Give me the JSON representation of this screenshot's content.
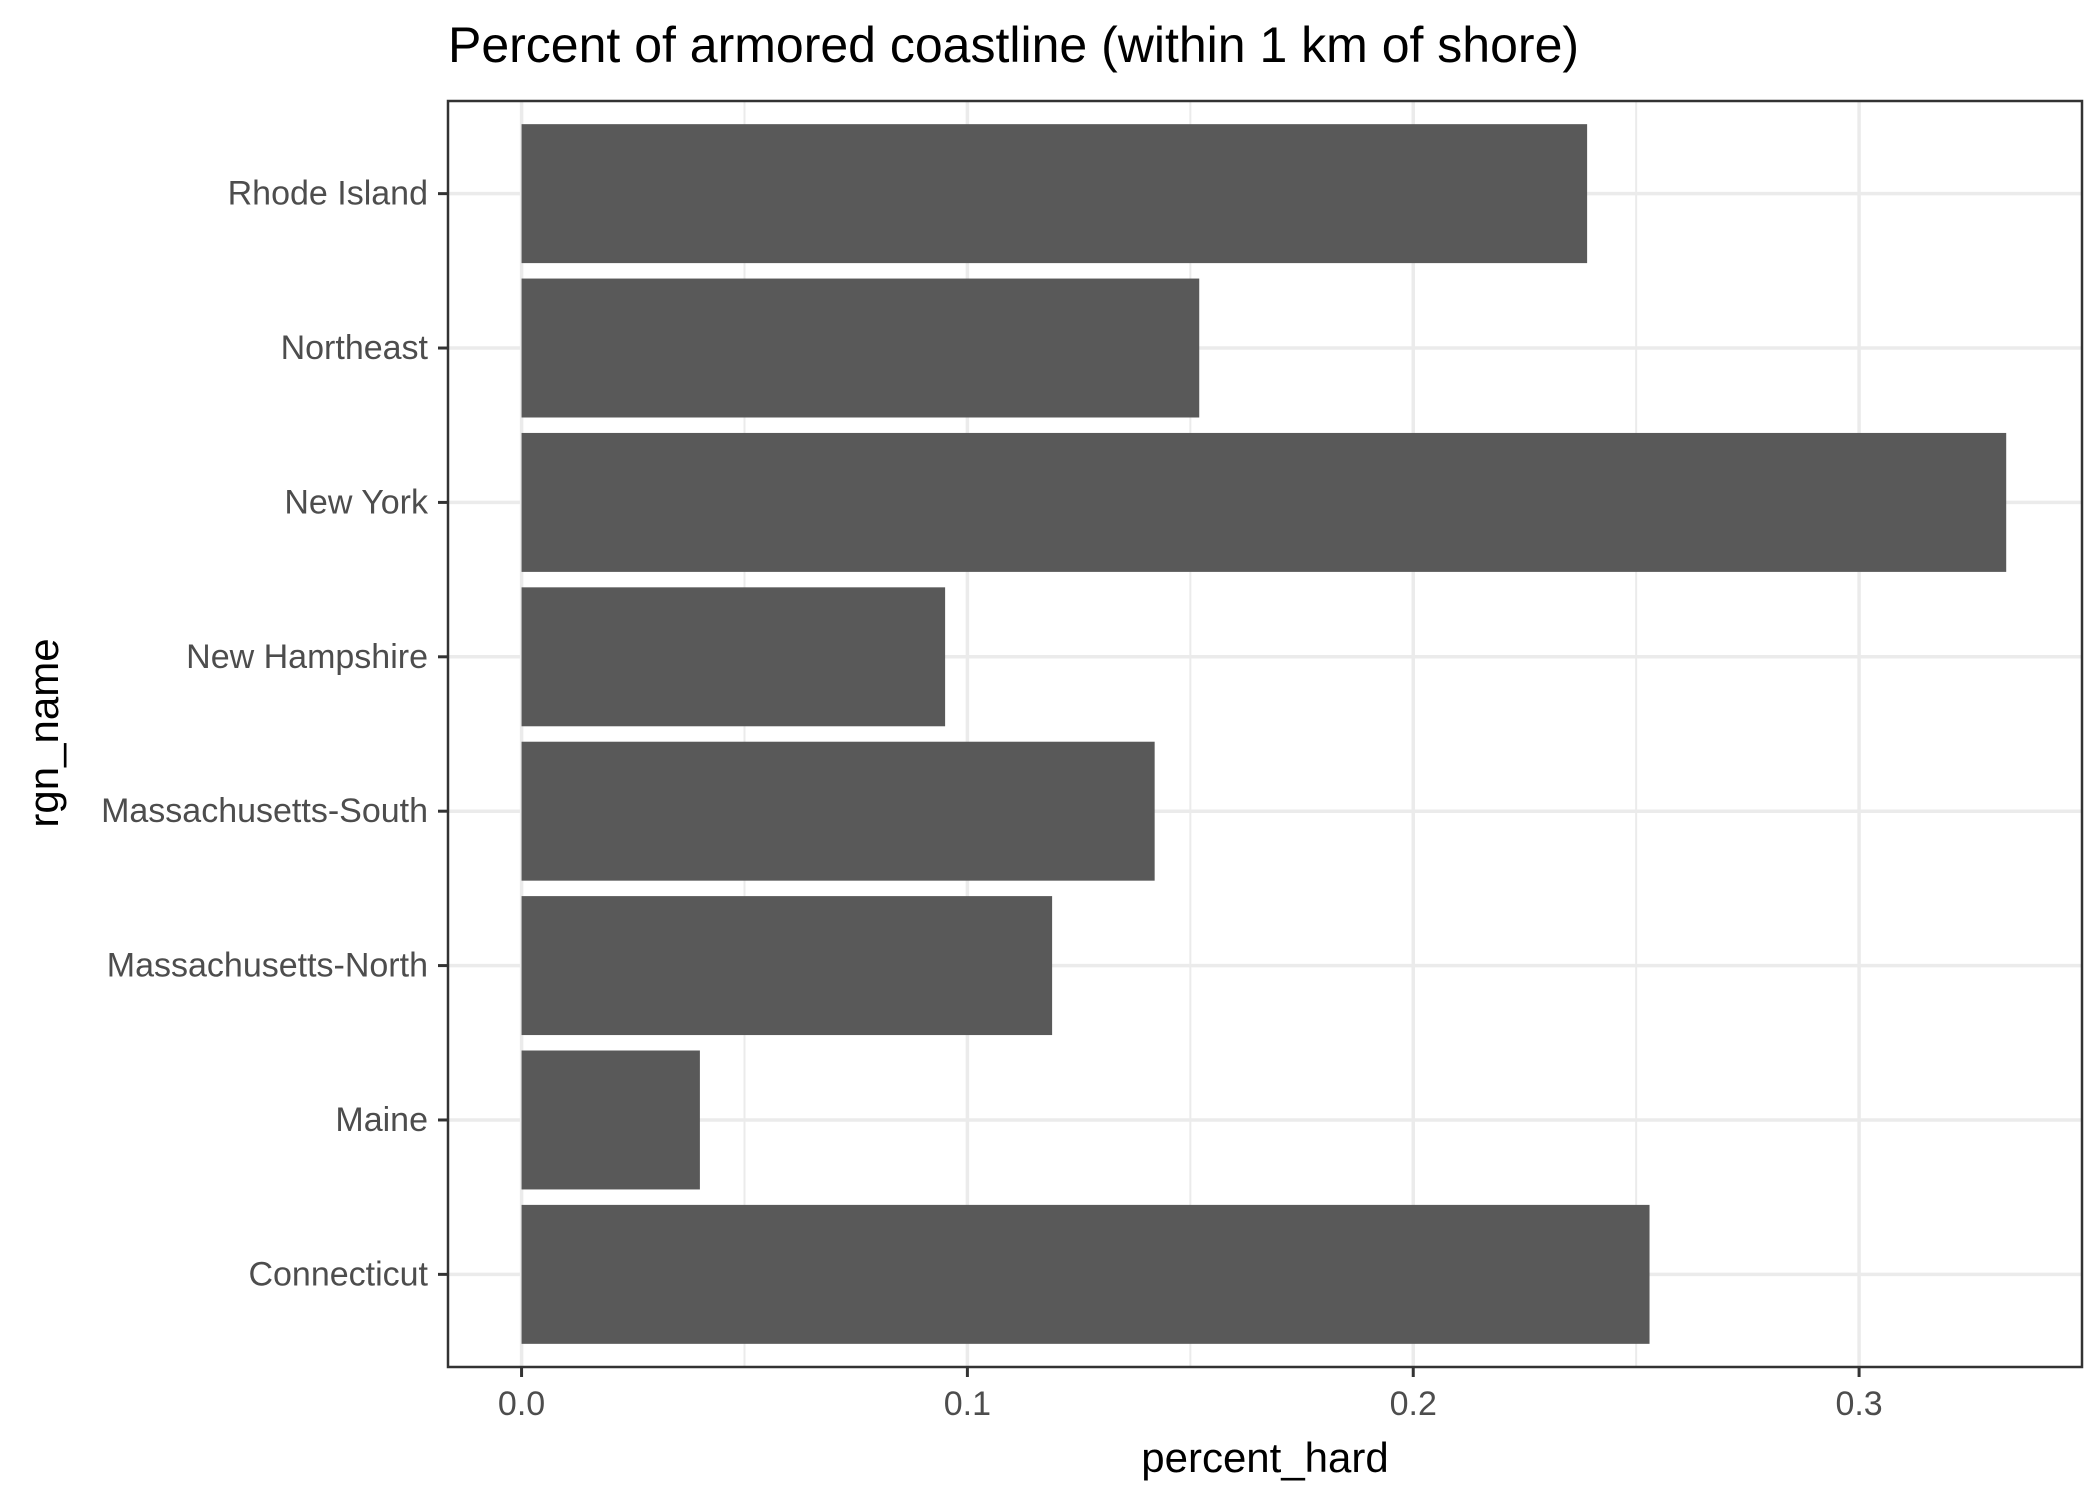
{
  "chart_data": {
    "type": "bar",
    "orientation": "horizontal",
    "title": "Percent of armored coastline (within 1 km of shore)",
    "xlabel": "percent_hard",
    "ylabel": "rgn_name",
    "categories": [
      "Connecticut",
      "Maine",
      "Massachusetts-North",
      "Massachusetts-South",
      "New Hampshire",
      "New York",
      "Northeast",
      "Rhode Island"
    ],
    "values": [
      0.253,
      0.04,
      0.119,
      0.142,
      0.095,
      0.333,
      0.152,
      0.239
    ],
    "xlim": [
      -0.0165,
      0.35
    ],
    "xticks": [
      0.0,
      0.1,
      0.2,
      0.3
    ],
    "xtick_labels": [
      "0.0",
      "0.1",
      "0.2",
      "0.3"
    ],
    "grid": true,
    "legend": "none",
    "bar_color": "#595959",
    "grid_color": "#ebebeb",
    "panel_border_color": "#333333"
  }
}
